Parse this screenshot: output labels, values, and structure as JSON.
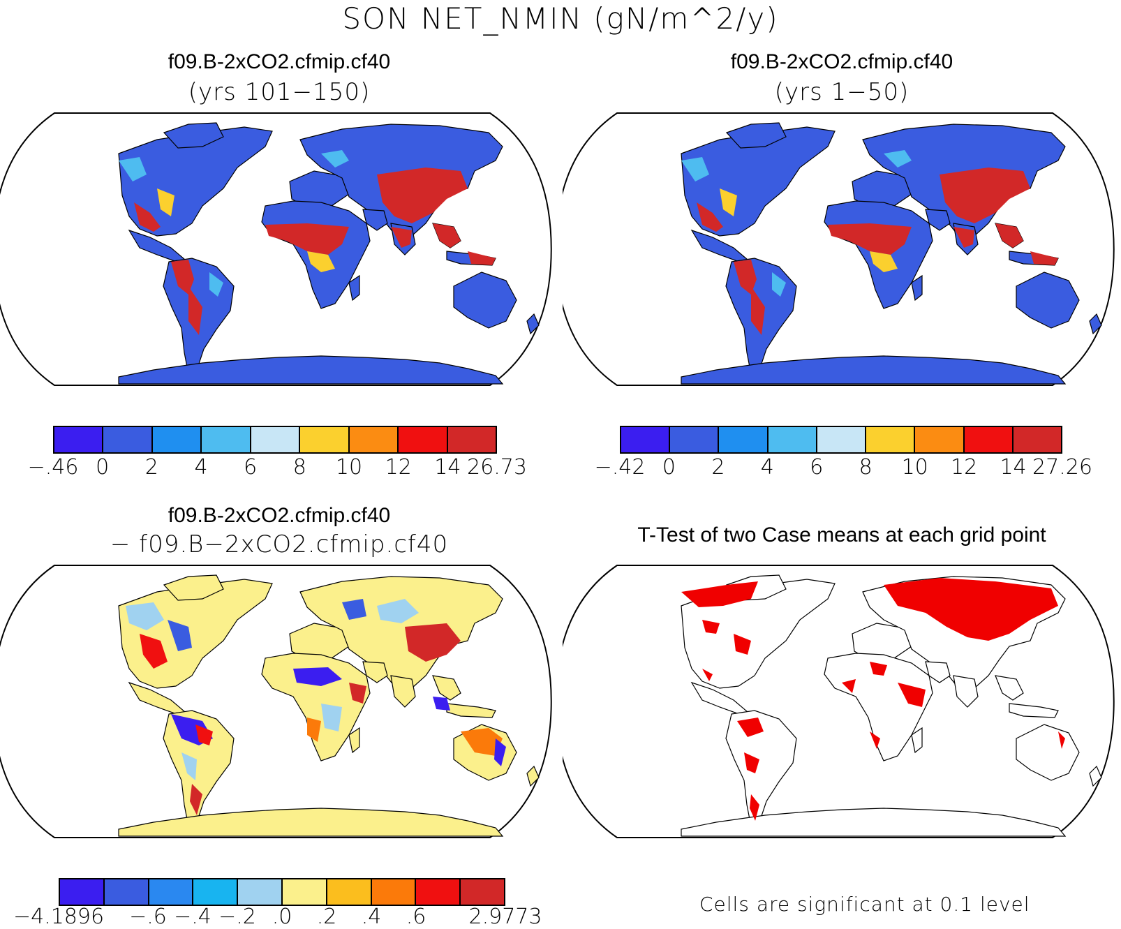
{
  "title": "SON NET_NMIN (gN/m^2/y)",
  "panels": {
    "top_left": {
      "title": "f09.B-2xCO2.cfmip.cf40",
      "subtitle": "(yrs 101−150)"
    },
    "top_right": {
      "title": "f09.B-2xCO2.cfmip.cf40",
      "subtitle": "(yrs 1−50)"
    },
    "bottom_left": {
      "title": "f09.B-2xCO2.cfmip.cf40",
      "subtitle": "− f09.B−2xCO2.cfmip.cf40"
    },
    "bottom_right": {
      "title": "T-Test of two Case means at each grid point",
      "note": "Cells are significant at 0.1 level"
    }
  },
  "colorbars": {
    "top_left": {
      "colors": [
        "#3b1ef0",
        "#3a5ce0",
        "#1f8ff0",
        "#4ebcf0",
        "#c8e6f6",
        "#fbd02e",
        "#fb8c12",
        "#f01010",
        "#d22828"
      ],
      "labels": [
        "−.46",
        "0",
        "2",
        "4",
        "6",
        "8",
        "10",
        "12",
        "14",
        "26.73"
      ]
    },
    "top_right": {
      "colors": [
        "#3b1ef0",
        "#3a5ce0",
        "#1f8ff0",
        "#4ebcf0",
        "#c8e6f6",
        "#fbd02e",
        "#fb8c12",
        "#f01010",
        "#d22828"
      ],
      "labels": [
        "−.42",
        "0",
        "2",
        "4",
        "6",
        "8",
        "10",
        "12",
        "14",
        "27.26"
      ]
    },
    "bottom_left": {
      "colors": [
        "#3b1ef0",
        "#3a5ce0",
        "#2a88f0",
        "#18b4f0",
        "#a0d2f0",
        "#fbf08c",
        "#fbbe1e",
        "#fb7a0a",
        "#f01010",
        "#d22828"
      ],
      "labels": [
        "−4.1896",
        "−.6",
        "−.4",
        "−.2",
        ".0",
        ".2",
        ".4",
        ".6",
        "2.9773"
      ],
      "label_positions": [
        0,
        2,
        3,
        4,
        5,
        6,
        7,
        8,
        10
      ]
    }
  },
  "legend_colors": {
    "significant": "#f00000",
    "land_base": "#3a5ce0",
    "high": "#d22828",
    "diff_base": "#fbf08c"
  }
}
